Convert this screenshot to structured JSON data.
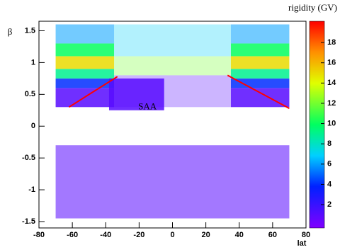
{
  "chart_data": {
    "type": "scatter",
    "x_label": "lat",
    "y_label": "β",
    "colorbar_label": "rigidity (GV)",
    "annotation": {
      "text": "SAA",
      "x": -15,
      "y": 0.3
    },
    "xlim": [
      -80,
      80
    ],
    "xticks": [
      -80,
      -60,
      -40,
      -20,
      0,
      20,
      40,
      60,
      80
    ],
    "ylim": [
      -1.6,
      1.65
    ],
    "yticks": [
      -1.5,
      -1,
      -0.5,
      0,
      0.5,
      1,
      1.5
    ],
    "zlim": [
      -0.3,
      20.1
    ],
    "zticks": [
      2,
      4,
      6,
      8,
      10,
      12,
      14,
      16,
      18
    ],
    "regions": [
      {
        "lat": [
          -70,
          70
        ],
        "beta": [
          -1.45,
          -0.3
        ],
        "rigidity": 1,
        "density": "medium"
      },
      {
        "lat": [
          -35,
          35
        ],
        "beta": [
          0.3,
          0.8
        ],
        "rigidity": 1,
        "density": "sparse"
      },
      {
        "lat": [
          -35,
          35
        ],
        "beta": [
          0.8,
          1.1
        ],
        "rigidity": 12,
        "density": "sparse"
      },
      {
        "lat": [
          -35,
          35
        ],
        "beta": [
          1.1,
          1.6
        ],
        "rigidity": 7,
        "density": "sparse"
      },
      {
        "lat": [
          -70,
          -35
        ],
        "beta": [
          0.3,
          0.6
        ],
        "rigidity": 1,
        "density": "dense"
      },
      {
        "lat": [
          -70,
          -35
        ],
        "beta": [
          0.6,
          0.75
        ],
        "rigidity": 4,
        "density": "dense"
      },
      {
        "lat": [
          -70,
          -35
        ],
        "beta": [
          0.75,
          0.9
        ],
        "rigidity": 9,
        "density": "dense"
      },
      {
        "lat": [
          -70,
          -35
        ],
        "beta": [
          0.9,
          1.1
        ],
        "rigidity": 15,
        "density": "dense"
      },
      {
        "lat": [
          -70,
          -35
        ],
        "beta": [
          1.1,
          1.3
        ],
        "rigidity": 10,
        "density": "dense"
      },
      {
        "lat": [
          -70,
          -35
        ],
        "beta": [
          1.3,
          1.6
        ],
        "rigidity": 6,
        "density": "medium"
      },
      {
        "lat": [
          35,
          70
        ],
        "beta": [
          0.3,
          0.6
        ],
        "rigidity": 1,
        "density": "dense"
      },
      {
        "lat": [
          35,
          70
        ],
        "beta": [
          0.6,
          0.75
        ],
        "rigidity": 4,
        "density": "dense"
      },
      {
        "lat": [
          35,
          70
        ],
        "beta": [
          0.75,
          0.9
        ],
        "rigidity": 9,
        "density": "dense"
      },
      {
        "lat": [
          35,
          70
        ],
        "beta": [
          0.9,
          1.1
        ],
        "rigidity": 15,
        "density": "dense"
      },
      {
        "lat": [
          35,
          70
        ],
        "beta": [
          1.1,
          1.3
        ],
        "rigidity": 10,
        "density": "dense"
      },
      {
        "lat": [
          35,
          70
        ],
        "beta": [
          1.3,
          1.6
        ],
        "rigidity": 6,
        "density": "medium"
      },
      {
        "lat": [
          -38,
          -5
        ],
        "beta": [
          0.25,
          0.75
        ],
        "rigidity": 1,
        "density": "dense"
      }
    ],
    "lines": [
      {
        "x": [
          -62,
          -33
        ],
        "y": [
          0.3,
          0.78
        ],
        "color": "#ff0000"
      },
      {
        "x": [
          33,
          70
        ],
        "y": [
          0.8,
          0.28
        ],
        "color": "#ff0000"
      }
    ]
  }
}
